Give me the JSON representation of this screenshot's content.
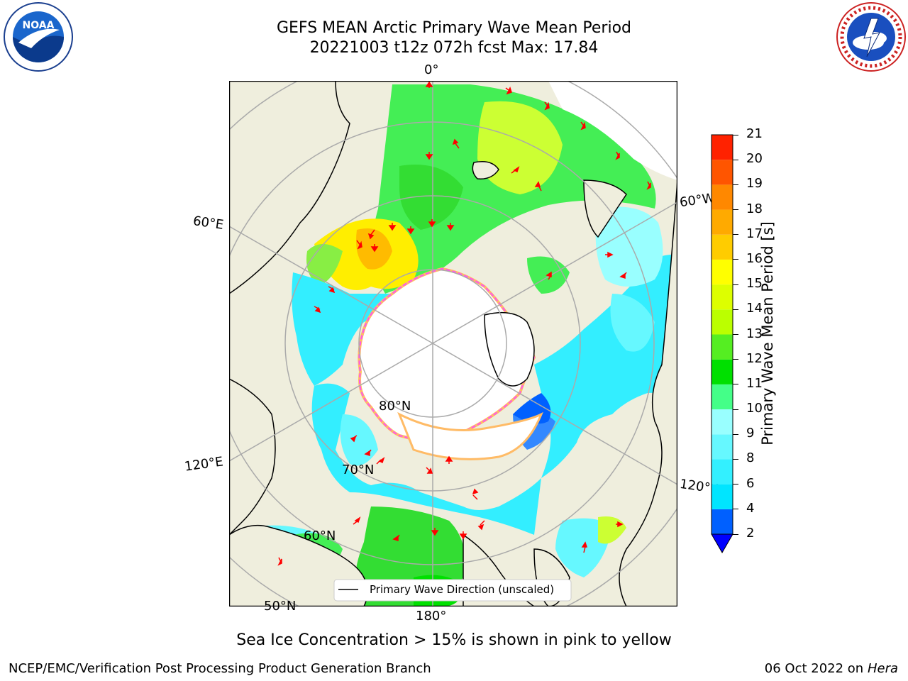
{
  "header": {
    "title_line1": "GEFS MEAN Arctic Primary Wave Mean Period",
    "title_line2": "20221003 t12z 072h fcst   Max: 17.84"
  },
  "logos": {
    "noaa_text": "NOAA",
    "noaa_ring_text": "NATIONAL OCEANIC AND ATMOSPHERIC ADMINISTRATION · U.S. DEPARTMENT OF COMMERCE",
    "nws_ring_text": "NATIONAL WEATHER SERVICE"
  },
  "map": {
    "lon_labels": {
      "top": "0°",
      "right_upper": "60°W",
      "right_lower": "120°W",
      "left_upper": "60°E",
      "left_lower": "120°E",
      "bottom": "180°"
    },
    "lat_labels": {
      "lat80": "80°N",
      "lat70": "70°N",
      "lat60": "60°N",
      "lat50": "50°N"
    },
    "legend_label": "Primary Wave Direction (unscaled)",
    "colors": {
      "land": "#efeedd",
      "ice_edge": "#ff55ee",
      "ice_inner": "#ffbb66",
      "arrow": "#ff0000",
      "grid": "#aaaaaa"
    }
  },
  "colorbar": {
    "label": "Primary Wave Mean Period [s]",
    "ticks": [
      "2",
      "4",
      "6",
      "8",
      "9",
      "10",
      "11",
      "12",
      "13",
      "14",
      "15",
      "16",
      "17",
      "18",
      "19",
      "20",
      "21"
    ],
    "colors_bottom_to_top": [
      "#0060ff",
      "#00e5ff",
      "#33f0ff",
      "#66f8ff",
      "#99ffff",
      "#44ff88",
      "#00e000",
      "#55ee22",
      "#bbff00",
      "#ddff00",
      "#ffff00",
      "#ffcc00",
      "#ffaa00",
      "#ff8800",
      "#ff5500",
      "#ff2200"
    ],
    "extend_color": "#0000ff"
  },
  "footer": {
    "note": "Sea Ice Concentration > 15% is shown in pink to yellow",
    "left": "NCEP/EMC/Verification Post Processing Product Generation Branch",
    "date": "06 Oct 2022 on ",
    "machine": "Hera"
  }
}
